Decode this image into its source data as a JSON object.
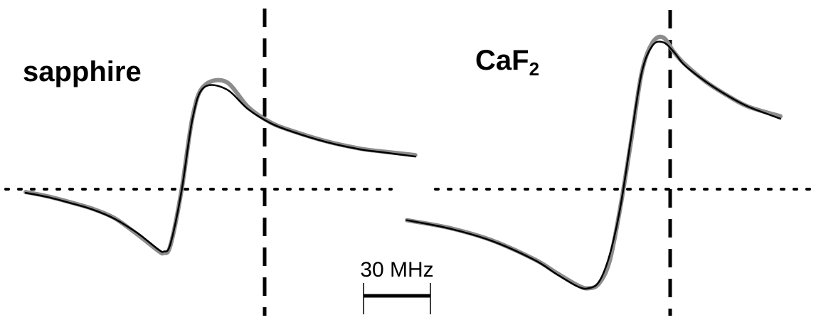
{
  "chart_data": [
    {
      "type": "line",
      "title": "sapphire",
      "series": [
        {
          "style": "measured",
          "color": "#8c8c8c",
          "x": [
            0,
            10,
            20,
            30,
            40,
            50,
            55,
            60,
            62,
            65,
            70,
            75,
            80,
            90,
            100,
            110,
            120,
            135,
            150,
            160,
            175
          ],
          "y": [
            -0.04,
            -0.1,
            -0.18,
            -0.27,
            -0.4,
            -0.62,
            -0.74,
            -0.86,
            -0.88,
            -0.78,
            -0.02,
            1.0,
            1.42,
            1.48,
            1.13,
            0.92,
            0.8,
            0.66,
            0.56,
            0.52,
            0.47
          ]
        },
        {
          "style": "fit",
          "color": "#000000",
          "x": [
            0,
            10,
            20,
            30,
            40,
            50,
            55,
            60,
            62,
            65,
            70,
            75,
            80,
            90,
            100,
            110,
            120,
            135,
            150,
            160,
            175
          ],
          "y": [
            -0.05,
            -0.11,
            -0.19,
            -0.28,
            -0.41,
            -0.6,
            -0.72,
            -0.84,
            -0.86,
            -0.76,
            -0.03,
            0.98,
            1.4,
            1.38,
            1.1,
            0.91,
            0.79,
            0.65,
            0.55,
            0.51,
            0.45
          ]
        }
      ]
    },
    {
      "type": "line",
      "title_base": "CaF",
      "title_sub": "2",
      "series": [
        {
          "style": "measured",
          "color": "#8c8c8c",
          "x": [
            0,
            20,
            40,
            60,
            70,
            80,
            85,
            90,
            95,
            100,
            105,
            110,
            115,
            120,
            125,
            130,
            140,
            150,
            160,
            175
          ],
          "y": [
            -0.52,
            -0.65,
            -0.86,
            -1.18,
            -1.4,
            -1.61,
            -1.66,
            -1.58,
            -1.2,
            -0.3,
            0.8,
            1.95,
            2.45,
            2.54,
            2.3,
            2.1,
            1.8,
            1.57,
            1.38,
            1.22
          ]
        },
        {
          "style": "fit",
          "color": "#000000",
          "x": [
            0,
            20,
            40,
            60,
            70,
            80,
            85,
            90,
            95,
            100,
            105,
            110,
            115,
            120,
            125,
            130,
            140,
            150,
            160,
            175
          ],
          "y": [
            -0.52,
            -0.66,
            -0.87,
            -1.19,
            -1.42,
            -1.63,
            -1.66,
            -1.55,
            -1.1,
            -0.3,
            0.85,
            1.95,
            2.4,
            2.46,
            2.3,
            2.08,
            1.8,
            1.57,
            1.38,
            1.18
          ]
        }
      ]
    }
  ],
  "scale_bar": {
    "label": "30 MHz",
    "value_mhz": 30
  }
}
